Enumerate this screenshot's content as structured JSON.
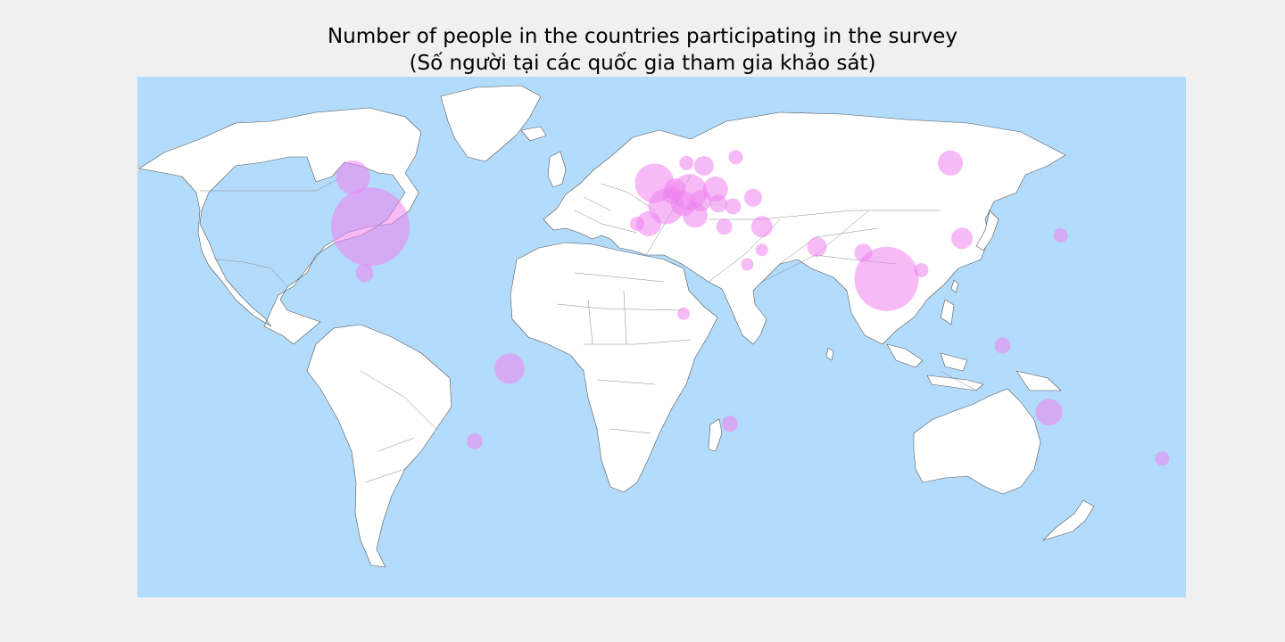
{
  "title": {
    "line1": "Number of people in the countries participating in the survey",
    "line2": "(Số người tại các quốc gia tham gia khảo sát)"
  },
  "colors": {
    "page_background": "#f0f0f0",
    "ocean": "#b3dcfc",
    "land": "#ffffff",
    "coastline": "#555555",
    "bubble": "#ee82ee"
  },
  "chart_data": {
    "type": "scatter",
    "projection": "equirectangular",
    "lon_range": [
      -180,
      180
    ],
    "lat_range": [
      -90,
      90
    ],
    "encoding": "bubble radius encodes number of survey participants (relative)",
    "points": [
      {
        "lon": -100,
        "lat": 39,
        "r": 44
      },
      {
        "lon": -106,
        "lat": 56,
        "r": 19
      },
      {
        "lon": -102,
        "lat": 23,
        "r": 10
      },
      {
        "lon": -52,
        "lat": -10,
        "r": 17
      },
      {
        "lon": -64,
        "lat": -35,
        "r": 9
      },
      {
        "lon": 78,
        "lat": 21,
        "r": 36
      },
      {
        "lon": 90,
        "lat": 24,
        "r": 8
      },
      {
        "lon": 70,
        "lat": 30,
        "r": 10
      },
      {
        "lon": 104,
        "lat": 35,
        "r": 12
      },
      {
        "lon": 138,
        "lat": 36,
        "r": 8
      },
      {
        "lon": 118,
        "lat": -2,
        "r": 9
      },
      {
        "lon": 134,
        "lat": -25,
        "r": 15
      },
      {
        "lon": 173,
        "lat": -41,
        "r": 8
      },
      {
        "lon": 24,
        "lat": -29,
        "r": 9
      },
      {
        "lon": 8,
        "lat": 9,
        "r": 7
      },
      {
        "lon": 54,
        "lat": 32,
        "r": 11
      },
      {
        "lon": 35,
        "lat": 31,
        "r": 7
      },
      {
        "lon": 35,
        "lat": 39,
        "r": 12
      },
      {
        "lon": 30,
        "lat": 26,
        "r": 7
      },
      {
        "lon": 22,
        "lat": 39,
        "r": 9
      },
      {
        "lon": 100,
        "lat": 61,
        "r": 14
      },
      {
        "lon": 32,
        "lat": 49,
        "r": 10
      },
      {
        "lon": 25,
        "lat": 46,
        "r": 9
      },
      {
        "lon": -2,
        "lat": 54,
        "r": 22
      },
      {
        "lon": -4,
        "lat": 40,
        "r": 14
      },
      {
        "lon": -8,
        "lat": 40,
        "r": 8
      },
      {
        "lon": 2,
        "lat": 46,
        "r": 20
      },
      {
        "lon": 10,
        "lat": 51,
        "r": 20
      },
      {
        "lon": 12,
        "lat": 43,
        "r": 14
      },
      {
        "lon": 5,
        "lat": 52,
        "r": 12
      },
      {
        "lon": 19,
        "lat": 52,
        "r": 14
      },
      {
        "lon": 15,
        "lat": 60,
        "r": 11
      },
      {
        "lon": 9,
        "lat": 61,
        "r": 8
      },
      {
        "lon": 26,
        "lat": 63,
        "r": 8
      },
      {
        "lon": 8,
        "lat": 47,
        "r": 14
      },
      {
        "lon": 14,
        "lat": 48,
        "r": 12
      },
      {
        "lon": 20,
        "lat": 47,
        "r": 10
      },
      {
        "lon": 4,
        "lat": 50,
        "r": 10
      }
    ]
  }
}
